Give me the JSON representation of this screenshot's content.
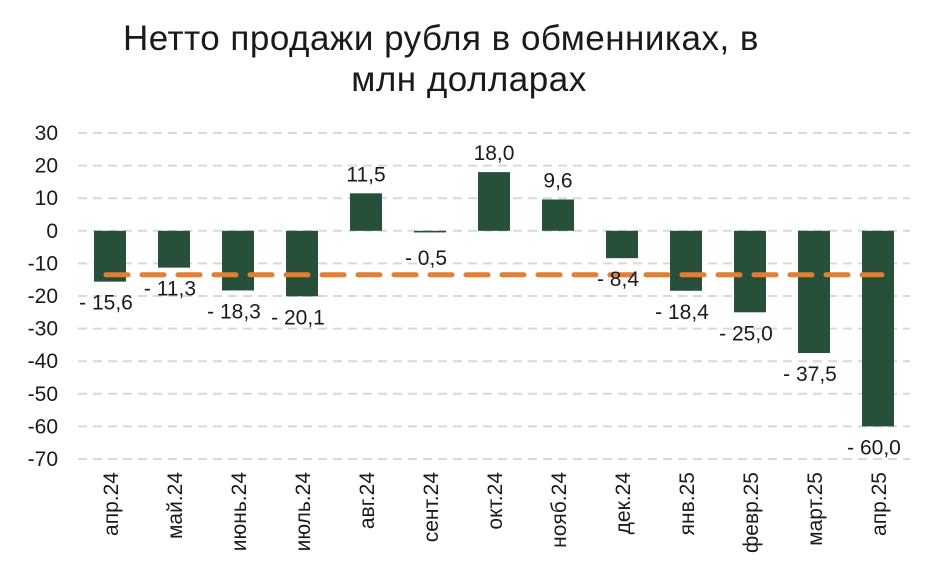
{
  "title_line1": "Нетто продажи рубля в обменниках, в",
  "title_line2": "млн долларах",
  "colors": {
    "bar": "#26503a",
    "avg_line": "#e07f36",
    "grid": "#d9d9d9"
  },
  "chart_data": {
    "type": "bar",
    "title": "Нетто продажи рубля в обменниках, в млн долларах",
    "xlabel": "",
    "ylabel": "",
    "ylim": [
      -70,
      30
    ],
    "yticks": [
      30,
      20,
      10,
      0,
      -10,
      -20,
      -30,
      -40,
      -50,
      -60,
      -70
    ],
    "grid": true,
    "categories": [
      "апр.24",
      "май.24",
      "июнь.24",
      "июль.24",
      "авг.24",
      "сент.24",
      "окт.24",
      "нояб.24",
      "дек.24",
      "янв.25",
      "февр.25",
      "март.25",
      "апр.25"
    ],
    "values": [
      -15.6,
      -11.3,
      -18.3,
      -20.1,
      11.5,
      -0.5,
      18.0,
      9.6,
      -8.4,
      -18.4,
      -25.0,
      -37.5,
      -60.0
    ],
    "value_labels": [
      "- 15,6",
      "- 11,3",
      "- 18,3",
      "- 20,1",
      "11,5",
      "- 0,5",
      "18,0",
      "9,6",
      "- 8,4",
      "- 18,4",
      "- 25,0",
      "- 37,5",
      "- 60,0"
    ],
    "average_line": -13.5
  }
}
